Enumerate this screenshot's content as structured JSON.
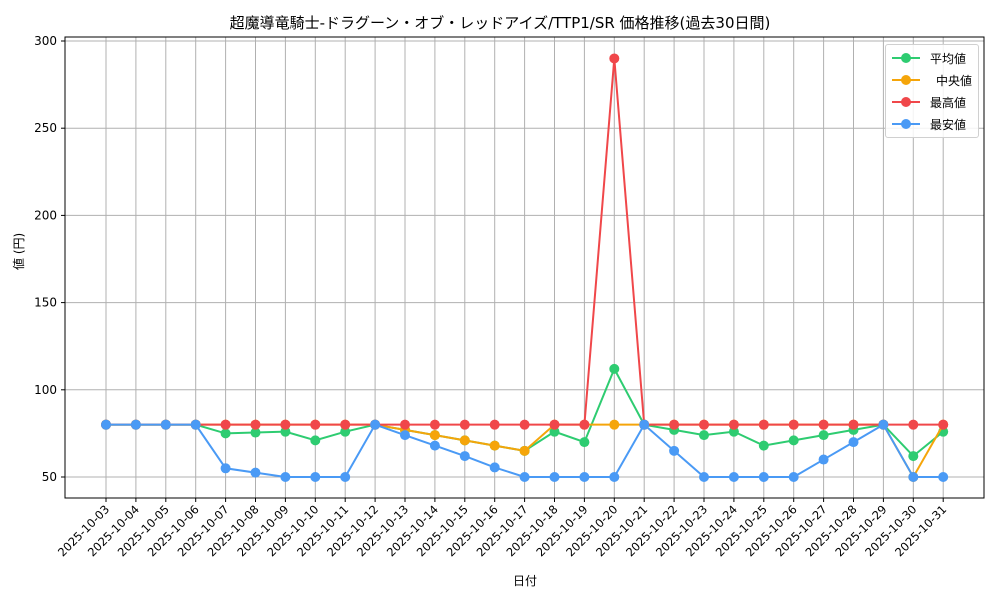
{
  "chart_data": {
    "type": "line",
    "title": "超魔導竜騎士-ドラグーン・オブ・レッドアイズ/TTP1/SR 価格推移(過去30日間)",
    "xlabel": "日付",
    "ylabel": "値 (円)",
    "ylim": [
      38,
      302
    ],
    "yticks": [
      50,
      100,
      150,
      200,
      250,
      300
    ],
    "grid": true,
    "legend_position": "upper right",
    "categories": [
      "2025-10-03",
      "2025-10-04",
      "2025-10-05",
      "2025-10-06",
      "2025-10-07",
      "2025-10-08",
      "2025-10-09",
      "2025-10-10",
      "2025-10-11",
      "2025-10-12",
      "2025-10-13",
      "2025-10-14",
      "2025-10-15",
      "2025-10-16",
      "2025-10-17",
      "2025-10-18",
      "2025-10-19",
      "2025-10-20",
      "2025-10-21",
      "2025-10-22",
      "2025-10-23",
      "2025-10-24",
      "2025-10-25",
      "2025-10-26",
      "2025-10-27",
      "2025-10-28",
      "2025-10-29",
      "2025-10-30",
      "2025-10-31"
    ],
    "series": [
      {
        "name": "平均値",
        "color": "#2ecc71",
        "values": [
          80,
          80,
          80,
          80,
          75,
          75.5,
          76,
          71,
          76,
          80,
          77,
          74,
          71,
          68,
          65,
          76,
          70,
          112,
          80,
          77,
          74,
          76,
          68,
          71,
          74,
          77,
          80,
          62,
          76
        ]
      },
      {
        "name": "中央値",
        "color": "#f5a50a",
        "values": [
          80,
          80,
          80,
          80,
          80,
          80,
          80,
          80,
          80,
          80,
          77,
          74,
          71,
          68,
          65,
          80,
          80,
          80,
          80,
          80,
          80,
          80,
          80,
          80,
          80,
          80,
          80,
          50,
          80
        ]
      },
      {
        "name": "最高値",
        "color": "#f0474a",
        "values": [
          80,
          80,
          80,
          80,
          80,
          80,
          80,
          80,
          80,
          80,
          80,
          80,
          80,
          80,
          80,
          80,
          80,
          290,
          80,
          80,
          80,
          80,
          80,
          80,
          80,
          80,
          80,
          80,
          80
        ]
      },
      {
        "name": "最安値",
        "color": "#4a9af5",
        "values": [
          80,
          80,
          80,
          80,
          55,
          52.5,
          50,
          50,
          50,
          80,
          74,
          68,
          62,
          55.5,
          50,
          50,
          50,
          50,
          80,
          65,
          50,
          50,
          50,
          50,
          60,
          70,
          80,
          50,
          50
        ]
      }
    ]
  }
}
